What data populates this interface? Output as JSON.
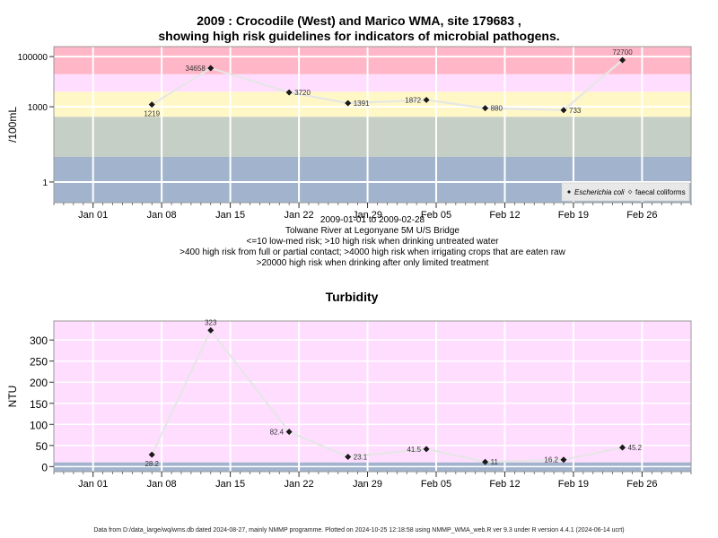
{
  "page": {
    "title_line1": "2009 : Crocodile (West) and Marico WMA, site 179683 ,",
    "title_line2": "showing high risk guidelines for indicators of microbial pathogens.",
    "notes": [
      "2009-01-01 to 2009-02-28",
      "Tolwane River at Legonyane 5M U/S Bridge",
      "<=10 low-med risk; >10 high risk when drinking untreated water",
      ">400 high risk from full or partial contact; >4000 high risk when irrigating crops that are eaten raw",
      ">20000 high risk when drinking after only limited treatment"
    ],
    "footer": "Data from D:/data_large/wq/wms.db dated 2024-08-27, mainly NMMP programme. Plotted on 2024-10-25 12:18:58 using NMMP_WMA_web.R ver 9.3 under R version 4.4.1 (2024-06-14 ucrt)"
  },
  "chart_data": [
    {
      "type": "line",
      "title": "",
      "ylabel": "/100mL",
      "xlabel": "",
      "y_scale": "log",
      "ylim": [
        0.15,
        250000
      ],
      "xlim": [
        "2008-12-28",
        "2009-03-03"
      ],
      "x_ticks": [
        "2009-01-01",
        "2009-01-08",
        "2009-01-15",
        "2009-01-22",
        "2009-01-29",
        "2009-02-05",
        "2009-02-12",
        "2009-02-19",
        "2009-02-26"
      ],
      "x_tick_labels": [
        "Jan 01",
        "Jan 08",
        "Jan 15",
        "Jan 22",
        "Jan 29",
        "Feb 05",
        "Feb 12",
        "Feb 19",
        "Feb 26"
      ],
      "y_ticks": [
        1,
        1000,
        100000
      ],
      "y_tick_labels": [
        "1",
        "1000",
        "100000"
      ],
      "grid": true,
      "bands": [
        {
          "from": 0.15,
          "to": 10,
          "color": "#a2b4cd"
        },
        {
          "from": 10,
          "to": 400,
          "color": "#c6cfc6"
        },
        {
          "from": 400,
          "to": 4000,
          "color": "#fff8c6"
        },
        {
          "from": 4000,
          "to": 20000,
          "color": "#ffddff"
        },
        {
          "from": 20000,
          "to": 250000,
          "color": "#ffb6c6"
        }
      ],
      "series": [
        {
          "name": "Escherichia coli",
          "x": [
            "2009-01-07",
            "2009-01-13",
            "2009-01-21",
            "2009-01-27",
            "2009-02-04",
            "2009-02-10",
            "2009-02-18",
            "2009-02-24"
          ],
          "values": [
            1219,
            34658,
            3720,
            1391,
            1872,
            880,
            733,
            72700
          ],
          "labels": [
            "1219",
            "34658",
            "3720",
            "1391",
            "1872",
            "880",
            "733",
            "72700"
          ],
          "color": "#1a1a1a"
        }
      ],
      "legend": {
        "position": "bottom-right",
        "entries": [
          "Escherichia coli",
          "faecal coliforms"
        ]
      }
    },
    {
      "type": "line",
      "title": "Turbidity",
      "ylabel": "NTU",
      "xlabel": "",
      "ylim": [
        -12,
        345
      ],
      "xlim": [
        "2008-12-28",
        "2009-03-03"
      ],
      "x_ticks": [
        "2009-01-01",
        "2009-01-08",
        "2009-01-15",
        "2009-01-22",
        "2009-01-29",
        "2009-02-05",
        "2009-02-12",
        "2009-02-19",
        "2009-02-26"
      ],
      "x_tick_labels": [
        "Jan 01",
        "Jan 08",
        "Jan 15",
        "Jan 22",
        "Jan 29",
        "Feb 05",
        "Feb 12",
        "Feb 19",
        "Feb 26"
      ],
      "y_ticks": [
        0,
        50,
        100,
        150,
        200,
        250,
        300
      ],
      "y_tick_labels": [
        "0",
        "50",
        "100",
        "150",
        "200",
        "250",
        "300"
      ],
      "grid": true,
      "bands": [
        {
          "from": -12,
          "to": 10,
          "color": "#a2b4cd"
        },
        {
          "from": 10,
          "to": 345,
          "color": "#ffddff"
        }
      ],
      "series": [
        {
          "name": "",
          "x": [
            "2009-01-07",
            "2009-01-13",
            "2009-01-21",
            "2009-01-27",
            "2009-02-04",
            "2009-02-10",
            "2009-02-18",
            "2009-02-24"
          ],
          "values": [
            28.2,
            323,
            82.4,
            23.1,
            41.5,
            11,
            16.2,
            45.2
          ],
          "labels": [
            "28.2",
            "323",
            "82.4",
            "23.1",
            "41.5",
            "11",
            "16.2",
            "45.2"
          ],
          "color": "#1a1a1a"
        }
      ]
    }
  ]
}
